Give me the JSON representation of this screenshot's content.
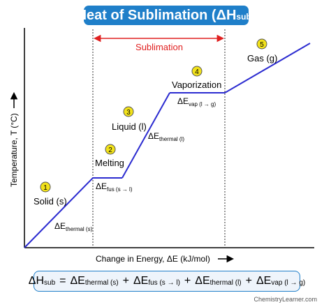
{
  "chart_data": {
    "type": "line",
    "title_main": "Heat of Sublimation (ΔH",
    "title_sub": "sub",
    "title_end": ")",
    "xlabel": "Change in Energy, ΔE (kJ/mol)",
    "ylabel": "Temperature, T (°C)",
    "grid": false,
    "legend": "none",
    "phases": [
      {
        "num": "1",
        "label": "Solid (s)"
      },
      {
        "num": "2",
        "label": "Melting"
      },
      {
        "num": "3",
        "label": "Liquid (l)"
      },
      {
        "num": "4",
        "label": "Vaporization"
      },
      {
        "num": "5",
        "label": "Gas (g)"
      }
    ],
    "segment_labels": [
      {
        "main": "ΔE",
        "sub": "thermal (s)"
      },
      {
        "main": "ΔE",
        "sub": "fus (s → l)"
      },
      {
        "main": "ΔE",
        "sub": "thermal (l)"
      },
      {
        "main": "ΔE",
        "sub": "vap (l → g)"
      }
    ],
    "sublimation_label": "Sublimation",
    "curve_color": "#2b2bd0",
    "arrow_color": "#e02020",
    "badge_color": "#f2e21a"
  },
  "formula": {
    "lhs": "ΔH",
    "lhs_sub": "sub",
    "eq": "=",
    "terms": [
      {
        "main": "ΔE",
        "sub": "thermal (s)"
      },
      {
        "main": "ΔE",
        "sub": "fus (s → l)"
      },
      {
        "main": "ΔE",
        "sub": "thermal (l)"
      },
      {
        "main": "ΔE",
        "sub": "vap (l → g)"
      }
    ],
    "plus": "+"
  },
  "watermark": "ChemistryLearner.com"
}
